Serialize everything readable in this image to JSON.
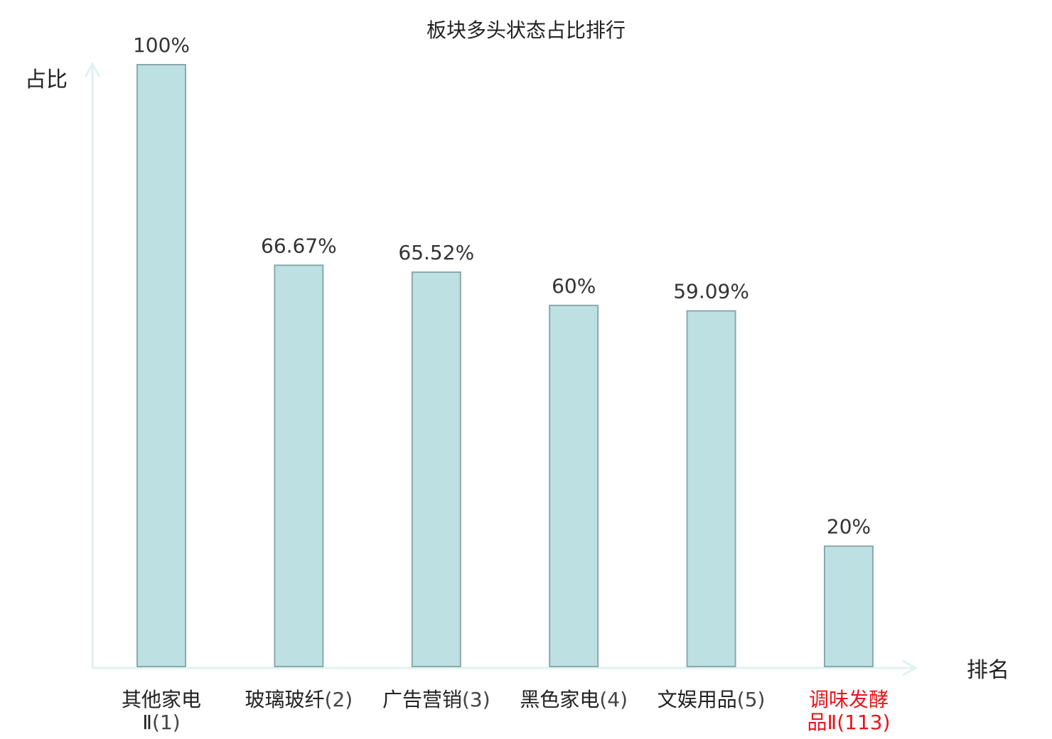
{
  "chart_data": {
    "type": "bar",
    "title": "板块多头状态占比排行",
    "xlabel": "排名",
    "ylabel": "占比",
    "ylim": [
      0,
      100
    ],
    "grid": false,
    "categories": [
      {
        "name": "其他家电",
        "line2": "Ⅱ",
        "rank": "(1)",
        "highlight": false
      },
      {
        "name": "玻璃玻纤",
        "line2": "",
        "rank": "(2)",
        "highlight": false
      },
      {
        "name": "广告营销",
        "line2": "",
        "rank": "(3)",
        "highlight": false
      },
      {
        "name": "黑色家电",
        "line2": "",
        "rank": "(4)",
        "highlight": false
      },
      {
        "name": "文娱用品",
        "line2": "",
        "rank": "(5)",
        "highlight": false
      },
      {
        "name": "调味发酵",
        "line2": "品Ⅱ",
        "rank": "(113)",
        "highlight": true
      }
    ],
    "values": [
      100,
      66.67,
      65.52,
      60,
      59.09,
      20
    ],
    "value_labels": [
      "100%",
      "66.67%",
      "65.52%",
      "60%",
      "59.09%",
      "20%"
    ]
  },
  "colors": {
    "bar_fill": "#bde0e3",
    "bar_stroke": "#8aa9ad",
    "axis": "#dff2ef",
    "text": "#222222",
    "label_gray": "#444444",
    "highlight": "#e8161b"
  }
}
